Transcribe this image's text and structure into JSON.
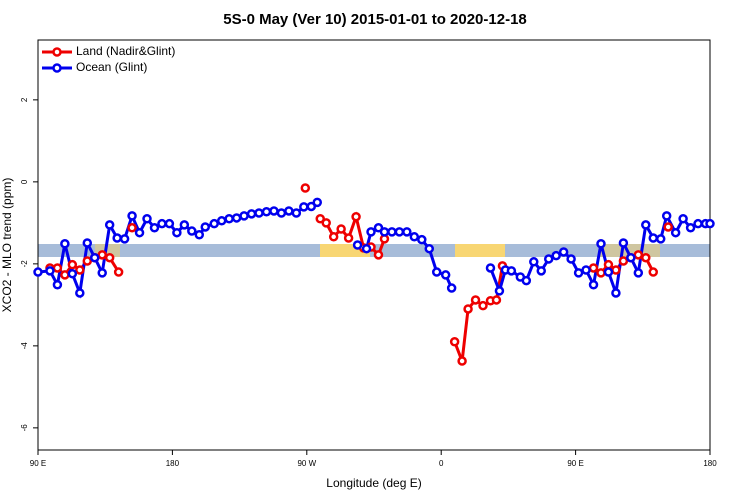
{
  "chart_data": {
    "type": "line",
    "title": "5S-0 May (Ver 10)   2015-01-01 to 2020-12-18",
    "x_label": "Longitude (deg E)",
    "y_label": "XCO2 - MLO trend (ppm)",
    "xlim": [
      90,
      540
    ],
    "xticks": [
      {
        "value": 90,
        "label": "90 E"
      },
      180,
      {
        "value": 270,
        "label": "90 W"
      },
      {
        "value": 360,
        "label": "0"
      },
      {
        "value": 450,
        "label": "90 E"
      },
      {
        "value": 540,
        "label": "180"
      }
    ],
    "ylim": [
      -6.54,
      3.46
    ],
    "yticks": [
      2,
      0,
      -2,
      -4,
      -6
    ],
    "legend": "top-left",
    "series": [
      {
        "name": "Land (Nadir&Glint)",
        "color": "#ee0000",
        "x": [
          98,
          103,
          108,
          113,
          118,
          123,
          128,
          133,
          138,
          144,
          null,
          153,
          null,
          269,
          null,
          279,
          283,
          288,
          293,
          298,
          303,
          308,
          313,
          318,
          322,
          null,
          369,
          374,
          378,
          383,
          388,
          393,
          397,
          401,
          null,
          462,
          467,
          472,
          477,
          482,
          487,
          492,
          497,
          502,
          null,
          512
        ],
        "values": [
          -2.1,
          -2.1,
          -2.27,
          -2.02,
          -2.15,
          -1.93,
          -1.85,
          -1.78,
          -1.85,
          -2.2,
          null,
          -1.12,
          null,
          -0.15,
          null,
          -0.9,
          -1.0,
          -1.34,
          -1.15,
          -1.37,
          -0.85,
          -1.61,
          -1.59,
          -1.78,
          -1.39,
          null,
          -3.9,
          -4.37,
          -3.1,
          -2.88,
          -3.02,
          -2.9,
          -2.88,
          -2.05,
          null,
          -2.1,
          -2.22,
          -2.02,
          -2.15,
          -1.93,
          -1.85,
          -1.78,
          -1.85,
          -2.2,
          null,
          -1.1
        ]
      },
      {
        "name": "Ocean (Glint)",
        "color": "#0000ee",
        "x": [
          90,
          98,
          103,
          108,
          113,
          118,
          123,
          128,
          133,
          138,
          143,
          148,
          153,
          158,
          163,
          168,
          173,
          178,
          183,
          188,
          193,
          198,
          202,
          208,
          213,
          218,
          223,
          228,
          233,
          238,
          243,
          248,
          253,
          258,
          263,
          268,
          273,
          277,
          null,
          304,
          310,
          313,
          318,
          322,
          327,
          332,
          337,
          342,
          347,
          352,
          357,
          363,
          367,
          null,
          393,
          399,
          403,
          407,
          413,
          417,
          422,
          427,
          432,
          437,
          442,
          447,
          452,
          457,
          462,
          467,
          472,
          477,
          482,
          487,
          492,
          497,
          502,
          507,
          511,
          517,
          522,
          527,
          532,
          537,
          540
        ],
        "values": [
          -2.2,
          -2.17,
          -2.51,
          -1.51,
          -2.24,
          -2.71,
          -1.49,
          -1.85,
          -2.22,
          -1.05,
          -1.37,
          -1.39,
          -0.83,
          -1.24,
          -0.9,
          -1.12,
          -1.02,
          -1.02,
          -1.24,
          -1.05,
          -1.2,
          -1.29,
          -1.1,
          -1.02,
          -0.95,
          -0.9,
          -0.88,
          -0.83,
          -0.78,
          -0.76,
          -0.73,
          -0.71,
          -0.76,
          -0.71,
          -0.76,
          -0.61,
          -0.6,
          -0.5,
          null,
          -1.54,
          -1.63,
          -1.22,
          -1.12,
          -1.22,
          -1.22,
          -1.22,
          -1.22,
          -1.34,
          -1.41,
          -1.63,
          -2.2,
          -2.27,
          -2.59,
          null,
          -2.1,
          -2.66,
          -2.15,
          -2.17,
          -2.32,
          -2.41,
          -1.95,
          -2.17,
          -1.88,
          -1.8,
          -1.71,
          -1.88,
          -2.22,
          -2.15,
          -2.51,
          -1.51,
          -2.2,
          -2.71,
          -1.49,
          -1.85,
          -2.22,
          -1.05,
          -1.37,
          -1.39,
          -0.83,
          -1.24,
          -0.9,
          -1.12,
          -1.02,
          -1.02,
          -1.02
        ]
      }
    ]
  }
}
